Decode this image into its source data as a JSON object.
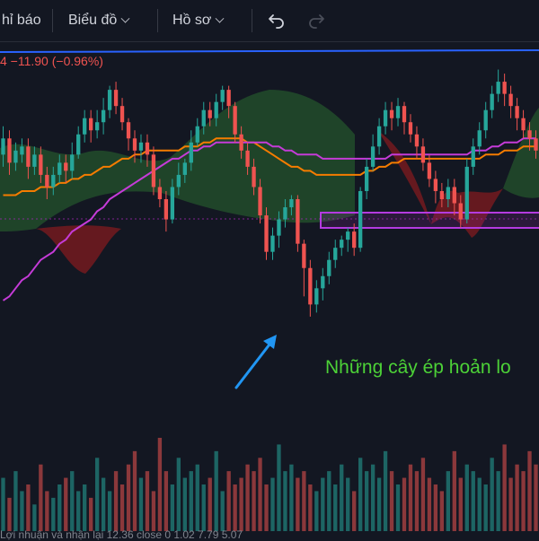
{
  "toolbar": {
    "indicators_label": "hỉ báo",
    "chart_label": "Biểu đồ",
    "profile_label": "Hồ sơ",
    "undo_icon": "undo-icon",
    "redo_icon": "redo-icon"
  },
  "legend": {
    "text": "4  −11.90 (−0.96%)"
  },
  "annotation": {
    "text": "Những cây ép hoản lo"
  },
  "bottom_legend": {
    "text": "Lợi nhuận và nhận lại  12.36  close 0   1.02   7.79   5.07"
  },
  "colors": {
    "background": "#131722",
    "up": "#26a69a",
    "down": "#ef5350",
    "ma_orange": "#f57c00",
    "ma_purple": "#c53bd8",
    "trendline": "#2962ff",
    "arrow": "#2196f3",
    "annotation": "#4cd137"
  },
  "chart_data": {
    "type": "candlestick",
    "title": "",
    "candles": [
      [
        1,
        46,
        50,
        43,
        53
      ],
      [
        2,
        50,
        44,
        41,
        52
      ],
      [
        3,
        44,
        47,
        42,
        49
      ],
      [
        4,
        46,
        48,
        44,
        50
      ],
      [
        5,
        48,
        43,
        40,
        50
      ],
      [
        6,
        43,
        46,
        41,
        48
      ],
      [
        7,
        46,
        41,
        39,
        48
      ],
      [
        8,
        41,
        38,
        35,
        43
      ],
      [
        9,
        38,
        41,
        36,
        43
      ],
      [
        10,
        41,
        44,
        39,
        46
      ],
      [
        11,
        44,
        42,
        39,
        46
      ],
      [
        12,
        42,
        46,
        40,
        49
      ],
      [
        13,
        46,
        51,
        45,
        53
      ],
      [
        14,
        51,
        55,
        49,
        57
      ],
      [
        15,
        55,
        52,
        49,
        57
      ],
      [
        16,
        52,
        54,
        50,
        57
      ],
      [
        17,
        54,
        57,
        51,
        60
      ],
      [
        18,
        57,
        62,
        55,
        63
      ],
      [
        19,
        62,
        58,
        56,
        64
      ],
      [
        20,
        58,
        54,
        52,
        60
      ],
      [
        21,
        54,
        50,
        47,
        55
      ],
      [
        22,
        50,
        47,
        44,
        52
      ],
      [
        23,
        47,
        49,
        44,
        51
      ],
      [
        24,
        49,
        46,
        43,
        51
      ],
      [
        25,
        46,
        38,
        36,
        48
      ],
      [
        26,
        38,
        35,
        33,
        40
      ],
      [
        27,
        35,
        30,
        27,
        37
      ],
      [
        28,
        30,
        38,
        29,
        40
      ],
      [
        29,
        38,
        41,
        36,
        44
      ],
      [
        30,
        41,
        44,
        39,
        45
      ],
      [
        31,
        44,
        49,
        42,
        52
      ],
      [
        32,
        49,
        53,
        48,
        55
      ],
      [
        33,
        53,
        57,
        51,
        59
      ],
      [
        34,
        57,
        55,
        53,
        59
      ],
      [
        35,
        55,
        59,
        53,
        61
      ],
      [
        36,
        59,
        62,
        57,
        63
      ],
      [
        37,
        62,
        58,
        55,
        63
      ],
      [
        38,
        58,
        51,
        49,
        59
      ],
      [
        39,
        51,
        47,
        45,
        53
      ],
      [
        40,
        47,
        43,
        41,
        49
      ],
      [
        41,
        43,
        38,
        36,
        45
      ],
      [
        42,
        38,
        31,
        29,
        40
      ],
      [
        43,
        31,
        22,
        20,
        33
      ],
      [
        44,
        22,
        26,
        20,
        28
      ],
      [
        45,
        26,
        30,
        23,
        32
      ],
      [
        46,
        30,
        33,
        28,
        35
      ],
      [
        47,
        33,
        35,
        31,
        36
      ],
      [
        48,
        35,
        24,
        22,
        36
      ],
      [
        49,
        24,
        18,
        11,
        25
      ],
      [
        50,
        18,
        9,
        6,
        20
      ],
      [
        51,
        9,
        13,
        7,
        15
      ],
      [
        52,
        13,
        16,
        10,
        18
      ],
      [
        53,
        16,
        20,
        14,
        22
      ],
      [
        54,
        20,
        23,
        18,
        25
      ],
      [
        55,
        23,
        25,
        21,
        26
      ],
      [
        56,
        25,
        27,
        22,
        28
      ],
      [
        57,
        27,
        23,
        21,
        29
      ],
      [
        58,
        23,
        37,
        22,
        38
      ],
      [
        59,
        37,
        43,
        35,
        45
      ],
      [
        60,
        43,
        48,
        42,
        51
      ],
      [
        61,
        48,
        53,
        46,
        55
      ],
      [
        62,
        53,
        57,
        51,
        59
      ],
      [
        63,
        57,
        55,
        52,
        59
      ],
      [
        64,
        55,
        58,
        53,
        60
      ],
      [
        65,
        58,
        54,
        51,
        59
      ],
      [
        66,
        54,
        51,
        49,
        56
      ],
      [
        67,
        51,
        48,
        45,
        53
      ],
      [
        68,
        48,
        44,
        42,
        50
      ],
      [
        69,
        44,
        40,
        38,
        46
      ],
      [
        70,
        40,
        37,
        34,
        42
      ],
      [
        71,
        37,
        35,
        33,
        39
      ],
      [
        72,
        35,
        38,
        33,
        40
      ],
      [
        73,
        38,
        34,
        31,
        40
      ],
      [
        74,
        34,
        30,
        28,
        36
      ],
      [
        75,
        30,
        43,
        29,
        45
      ],
      [
        76,
        43,
        48,
        41,
        50
      ],
      [
        77,
        48,
        52,
        46,
        54
      ],
      [
        78,
        52,
        57,
        50,
        59
      ],
      [
        79,
        57,
        61,
        55,
        63
      ],
      [
        80,
        61,
        64,
        59,
        67
      ],
      [
        81,
        64,
        61,
        58,
        66
      ],
      [
        82,
        61,
        58,
        55,
        63
      ],
      [
        83,
        58,
        55,
        52,
        60
      ],
      [
        84,
        55,
        52,
        50,
        57
      ],
      [
        85,
        52,
        50,
        47,
        54
      ],
      [
        86,
        50,
        47,
        45,
        52
      ]
    ],
    "volumes": [
      8,
      5,
      9,
      6,
      7,
      4,
      10,
      6,
      5,
      7,
      8,
      9,
      6,
      7,
      5,
      11,
      8,
      6,
      9,
      7,
      10,
      12,
      8,
      9,
      6,
      14,
      9,
      7,
      11,
      8,
      9,
      10,
      7,
      8,
      12,
      6,
      9,
      7,
      8,
      10,
      9,
      11,
      7,
      8,
      13,
      9,
      10,
      8,
      9,
      7,
      6,
      8,
      9,
      7,
      10,
      8,
      6,
      11,
      9,
      10,
      8,
      12,
      9,
      7,
      8,
      10,
      9,
      11,
      8,
      7,
      6,
      9,
      12,
      8,
      10,
      9,
      8,
      7,
      11,
      9,
      13,
      8,
      10,
      9,
      12,
      10
    ],
    "moving_averages": [
      {
        "color": "orange",
        "values": [
          36,
          36,
          36,
          37,
          37,
          37,
          38,
          38,
          38,
          39,
          39,
          40,
          40,
          41,
          41,
          42,
          43,
          43,
          44,
          45,
          45,
          46,
          46,
          47,
          47,
          47,
          47,
          47,
          47,
          48,
          48,
          48,
          49,
          49,
          50,
          50,
          50,
          50,
          50,
          49,
          49,
          48,
          47,
          46,
          45,
          44,
          43,
          43,
          42,
          42,
          41,
          41,
          41,
          41,
          41,
          41,
          41,
          41,
          42,
          42,
          43,
          43,
          44,
          44,
          45,
          45,
          45,
          45,
          45,
          45,
          45,
          45,
          45,
          45,
          45,
          45,
          45,
          46,
          46,
          46,
          47,
          47,
          47,
          48,
          48,
          48
        ]
      },
      {
        "color": "purple",
        "values": [
          10,
          11,
          13,
          15,
          16,
          18,
          20,
          21,
          22,
          24,
          25,
          27,
          28,
          29,
          30,
          32,
          33,
          35,
          36,
          37,
          38,
          39,
          40,
          41,
          42,
          43,
          44,
          45,
          45,
          46,
          47,
          47,
          48,
          48,
          49,
          49,
          49,
          49,
          49,
          49,
          49,
          49,
          49,
          48,
          48,
          47,
          47,
          46,
          46,
          46,
          46,
          45,
          45,
          45,
          45,
          45,
          45,
          45,
          45,
          45,
          45,
          45,
          46,
          46,
          46,
          46,
          46,
          46,
          46,
          46,
          46,
          46,
          46,
          46,
          46,
          47,
          47,
          47,
          48,
          48,
          49,
          49,
          49,
          50,
          50,
          50
        ]
      }
    ],
    "ylim": [
      0,
      70
    ]
  }
}
